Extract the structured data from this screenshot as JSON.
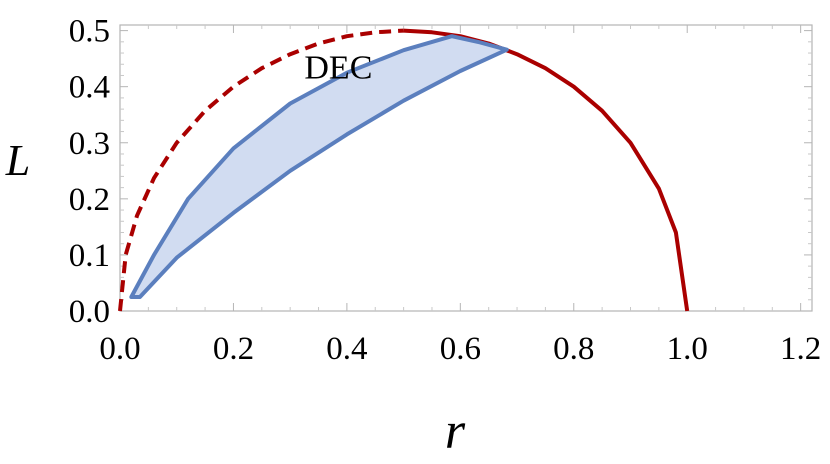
{
  "chart_data": {
    "type": "line",
    "xlabel": "r",
    "ylabel": "L",
    "xlim": [
      0,
      1.22
    ],
    "ylim": [
      0,
      0.51
    ],
    "xticks": [
      "0.0",
      "0.2",
      "0.4",
      "0.6",
      "0.8",
      "1.0",
      "1.2"
    ],
    "yticks": [
      "0.0",
      "0.1",
      "0.2",
      "0.3",
      "0.4",
      "0.5"
    ],
    "annotation": "DEC",
    "grid": false,
    "colors": {
      "boundary": "#aa0000",
      "region_stroke": "#5b7fbe",
      "region_fill": "#c9d6ee"
    },
    "series": [
      {
        "style": "dashed",
        "x": [
          0.0,
          0.01,
          0.03,
          0.06,
          0.1,
          0.15,
          0.2,
          0.25,
          0.3,
          0.35,
          0.4,
          0.45,
          0.5
        ],
        "y": [
          0.0,
          0.1,
          0.17,
          0.237,
          0.3,
          0.357,
          0.4,
          0.433,
          0.458,
          0.477,
          0.49,
          0.497,
          0.5
        ]
      },
      {
        "style": "solid",
        "x": [
          0.5,
          0.55,
          0.6,
          0.65,
          0.7,
          0.75,
          0.8,
          0.85,
          0.9,
          0.95,
          0.98,
          1.0
        ],
        "y": [
          0.5,
          0.497,
          0.49,
          0.477,
          0.458,
          0.433,
          0.4,
          0.357,
          0.3,
          0.218,
          0.14,
          0.0
        ]
      },
      {
        "style": "region",
        "x": [
          0.02,
          0.06,
          0.12,
          0.2,
          0.3,
          0.4,
          0.5,
          0.585,
          0.635,
          0.682,
          0.6,
          0.5,
          0.4,
          0.3,
          0.2,
          0.1,
          0.035,
          0.02
        ],
        "y": [
          0.025,
          0.1,
          0.2,
          0.29,
          0.37,
          0.425,
          0.465,
          0.49,
          0.479,
          0.466,
          0.428,
          0.375,
          0.315,
          0.25,
          0.175,
          0.095,
          0.025,
          0.025
        ]
      }
    ],
    "annotation_pos": [
      0.385,
      0.415
    ]
  }
}
